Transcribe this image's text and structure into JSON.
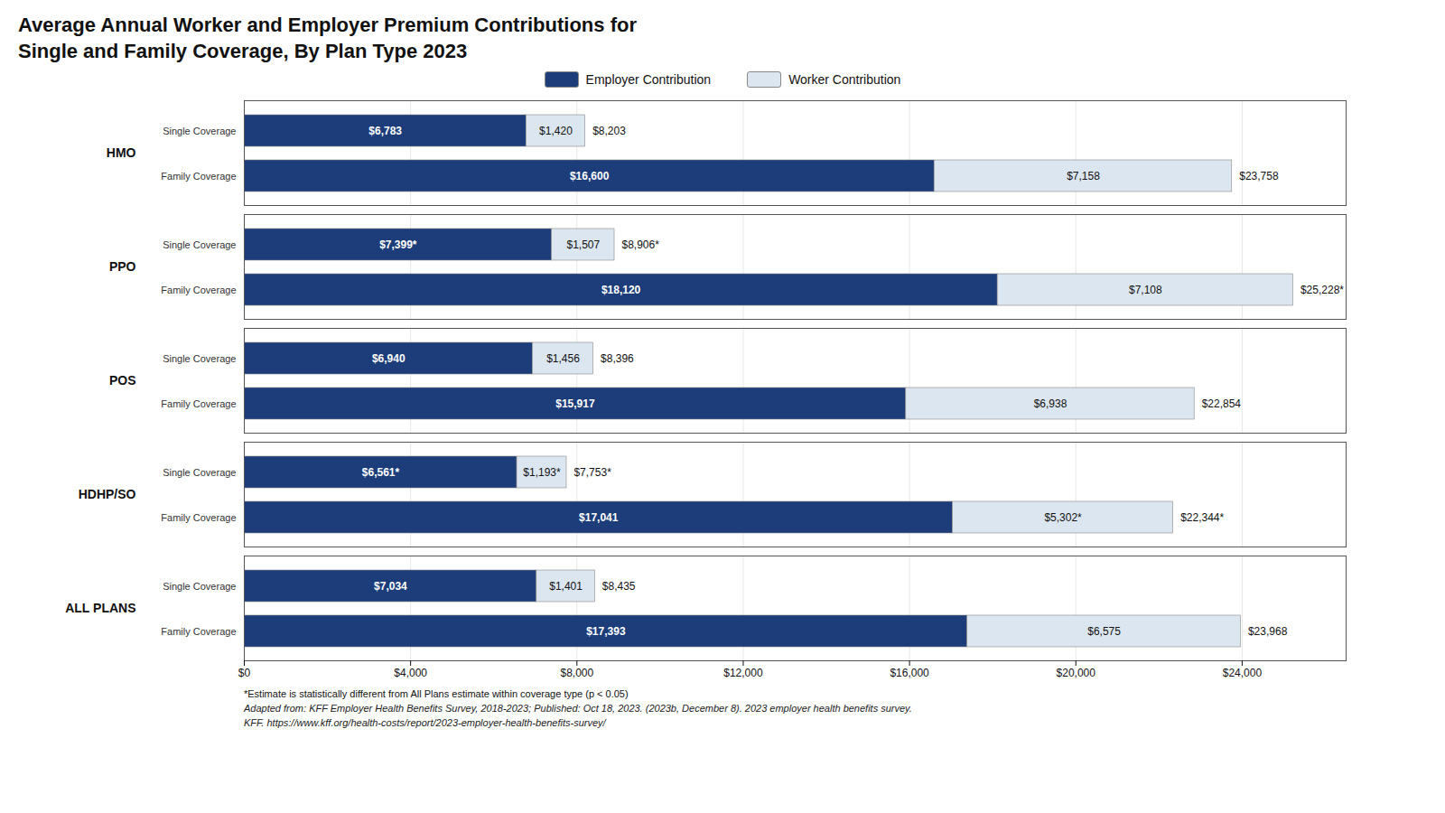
{
  "chart_data": {
    "type": "bar",
    "orientation": "horizontal",
    "stacked": true,
    "data_labels": true,
    "grid": true,
    "legend": "top",
    "title": "Average Annual Worker and Employer Premium Contributions for\nSingle and Family Coverage, By Plan Type 2023",
    "categories": [
      "HMO",
      "PPO",
      "POS",
      "HDHP/SO",
      "ALL PLANS"
    ],
    "subcategories": [
      "Single Coverage",
      "Family Coverage"
    ],
    "series": [
      {
        "name": "Employer Contribution",
        "color": "#1c3d7a",
        "values": [
          [
            6783,
            16600
          ],
          [
            7399,
            18120
          ],
          [
            6940,
            15917
          ],
          [
            6561,
            17041
          ],
          [
            7034,
            17393
          ]
        ],
        "value_labels": [
          [
            "$6,783",
            "$16,600"
          ],
          [
            "$7,399*",
            "$18,120"
          ],
          [
            "$6,940",
            "$15,917"
          ],
          [
            "$6,561*",
            "$17,041"
          ],
          [
            "$7,034",
            "$17,393"
          ]
        ]
      },
      {
        "name": "Worker Contribution",
        "color": "#dce6f0",
        "values": [
          [
            1420,
            7158
          ],
          [
            1507,
            7108
          ],
          [
            1456,
            6938
          ],
          [
            1193,
            5302
          ],
          [
            1401,
            6575
          ]
        ],
        "value_labels": [
          [
            "$1,420",
            "$7,158"
          ],
          [
            "$1,507",
            "$7,108"
          ],
          [
            "$1,456",
            "$6,938"
          ],
          [
            "$1,193*",
            "$5,302*"
          ],
          [
            "$1,401",
            "$6,575"
          ]
        ]
      }
    ],
    "totals": [
      [
        8203,
        23758
      ],
      [
        8906,
        25228
      ],
      [
        8396,
        22854
      ],
      [
        7753,
        22344
      ],
      [
        8435,
        23968
      ]
    ],
    "total_labels": [
      [
        "$8,203",
        "$23,758"
      ],
      [
        "$8,906*",
        "$25,228*"
      ],
      [
        "$8,396",
        "$22,854"
      ],
      [
        "$7,753*",
        "$22,344*"
      ],
      [
        "$8,435",
        "$23,968"
      ]
    ],
    "xlim": [
      0,
      26500
    ],
    "xticks": [
      {
        "value": 0,
        "label": "$0"
      },
      {
        "value": 4000,
        "label": "$4,000"
      },
      {
        "value": 8000,
        "label": "$8,000"
      },
      {
        "value": 12000,
        "label": "$12,000"
      },
      {
        "value": 16000,
        "label": "$16,000"
      },
      {
        "value": 20000,
        "label": "$20,000"
      },
      {
        "value": 24000,
        "label": "$24,000"
      }
    ],
    "footnotes": [
      "*Estimate is statistically different from All Plans estimate within coverage type (p < 0.05)",
      "Adapted from: KFF Employer Health Benefits Survey, 2018-2023; Published: Oct 18, 2023. (2023b, December 8). 2023 employer health benefits survey.",
      "KFF. https://www.kff.org/health-costs/report/2023-employer-health-benefits-survey/"
    ]
  }
}
